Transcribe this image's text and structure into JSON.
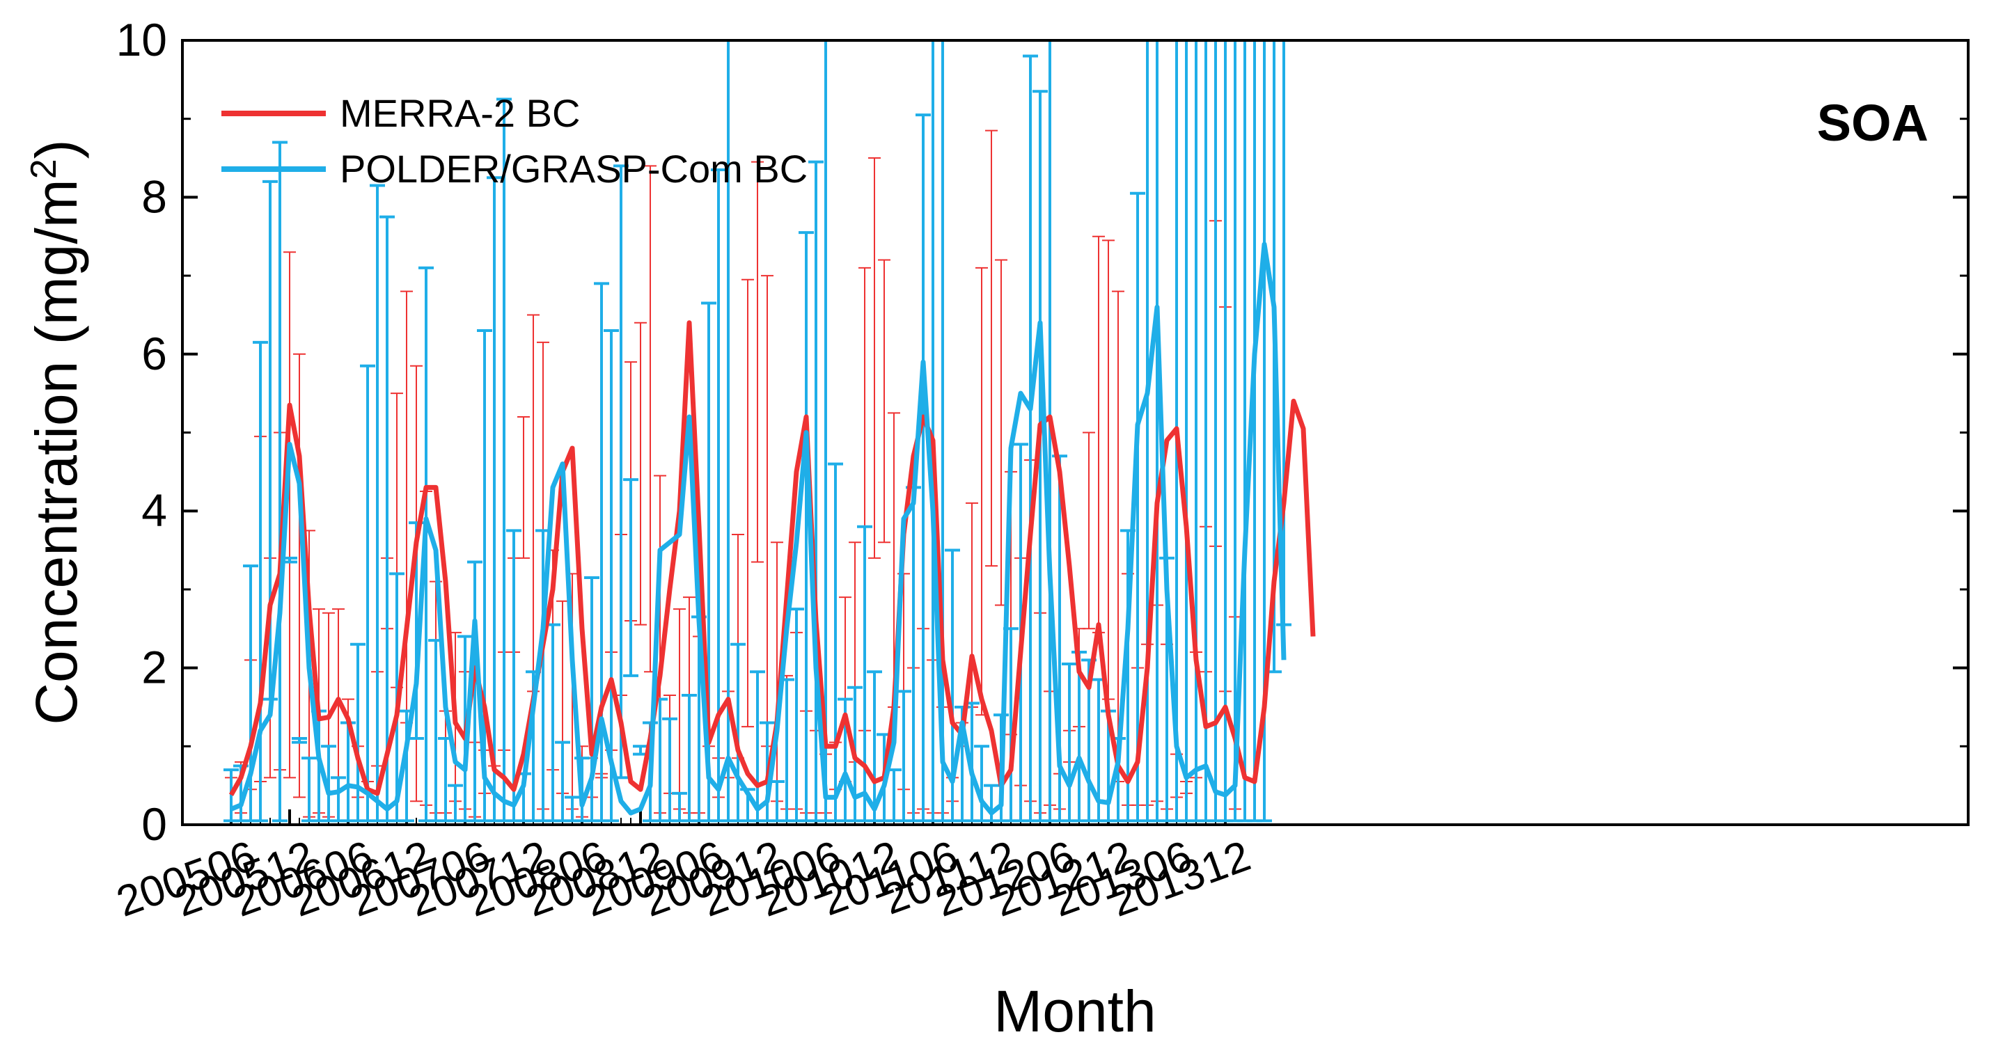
{
  "chart_data": {
    "type": "line",
    "title": "",
    "panel_label": "SOA",
    "xlabel": "Month",
    "ylabel_main": "Concentration (mg/m",
    "ylabel_sup": "2",
    "ylabel_close": ")",
    "ylim": [
      0,
      10
    ],
    "y_ticks": [
      "0",
      "2",
      "4",
      "6",
      "8",
      "10"
    ],
    "x_tick_labels": [
      "200506",
      "200512",
      "200606",
      "200612",
      "200706",
      "200712",
      "200806",
      "200812",
      "200906",
      "200912",
      "201006",
      "201012",
      "201106",
      "201112",
      "201206",
      "201212",
      "201306",
      "201312"
    ],
    "x_start": "200506",
    "x_end": "201312",
    "legend_position": "top-left",
    "colors": {
      "merra": "#ee3232",
      "polder": "#1faee8",
      "axis": "#000000"
    },
    "series": [
      {
        "name": "MERRA-2 BC",
        "key": "merra",
        "values": [
          0.38,
          0.6,
          1.0,
          1.55,
          2.8,
          3.2,
          5.35,
          4.7,
          2.75,
          1.35,
          1.37,
          1.6,
          1.35,
          0.85,
          0.45,
          0.4,
          0.9,
          1.4,
          2.5,
          3.6,
          4.3,
          4.3,
          3.1,
          1.3,
          1.1,
          2.0,
          1.5,
          0.7,
          0.6,
          0.45,
          0.9,
          1.6,
          2.3,
          3.0,
          4.5,
          4.8,
          2.5,
          0.9,
          1.5,
          1.85,
          1.3,
          0.55,
          0.45,
          1.1,
          1.9,
          3.0,
          4.0,
          6.4,
          3.8,
          1.05,
          1.4,
          1.6,
          0.95,
          0.65,
          0.5,
          0.55,
          1.3,
          2.9,
          4.5,
          5.2,
          2.6,
          1.0,
          1.0,
          1.4,
          0.85,
          0.75,
          0.55,
          0.6,
          1.5,
          3.7,
          4.7,
          5.2,
          4.9,
          2.1,
          1.3,
          1.15,
          2.15,
          1.6,
          1.2,
          0.5,
          0.7,
          2.2,
          3.7,
          5.1,
          5.2,
          4.5,
          3.3,
          1.95,
          1.75,
          2.55,
          1.4,
          0.75,
          0.55,
          0.8,
          2.0,
          4.1,
          4.9,
          5.05,
          3.8,
          2.1,
          1.25,
          1.3,
          1.5,
          1.1,
          0.6,
          0.55,
          1.5,
          3.1,
          4.1,
          5.4,
          5.05,
          2.4
        ],
        "err_upper": [
          0.6,
          0.8,
          2.1,
          4.95,
          3.4,
          5.0,
          7.3,
          6.0,
          3.75,
          2.75,
          2.7,
          2.75,
          1.6,
          1.0,
          0.55,
          1.95,
          3.4,
          5.5,
          6.8,
          5.85,
          4.25,
          3.1,
          1.45,
          2.45,
          1.95,
          1.05,
          0.95,
          0.75,
          2.2,
          3.4,
          5.2,
          6.5,
          6.15,
          3.5,
          2.85,
          3.2,
          1.0,
          0.85,
          0.65,
          2.2,
          3.7,
          5.9,
          6.4,
          8.4,
          4.45,
          1.65,
          2.75,
          2.9,
          2.4,
          1.0,
          0.85,
          1.7,
          3.7,
          6.95,
          8.45,
          7.0,
          3.6,
          1.9,
          2.45,
          1.45,
          1.2,
          0.9,
          1.05,
          2.9,
          3.6,
          7.1,
          8.5,
          7.2,
          5.25,
          3.2,
          2.0,
          2.5,
          2.1,
          1.5,
          0.6,
          1.3,
          4.1,
          7.1,
          8.85,
          7.2,
          4.5,
          3.4,
          4.65,
          2.7,
          1.7,
          0.65,
          1.2,
          2.5,
          5.0,
          7.5,
          7.45,
          6.8,
          3.2,
          2.0,
          2.3,
          2.8,
          2.3,
          0.9,
          0.55,
          2.2,
          3.8,
          7.7,
          6.6,
          2.65
        ],
        "err_lower": [
          0.05,
          0.15,
          0.45,
          0.55,
          0.6,
          0.7,
          0.6,
          0.35,
          0.1,
          0.15,
          0.1,
          0.05,
          0.05,
          0.35,
          0.55,
          0.75,
          2.5,
          1.75,
          1.3,
          0.3,
          0.25,
          0.15,
          0.15,
          0.3,
          0.2,
          0.1,
          0.4,
          0.75,
          0.95,
          2.2,
          3.4,
          1.7,
          0.2,
          0.7,
          0.4,
          0.2,
          0.1,
          0.35,
          0.6,
          0.95,
          1.65,
          2.6,
          2.55,
          1.95,
          0.15,
          0.4,
          0.2,
          0.15,
          0.15,
          0.05,
          0.35,
          0.6,
          0.85,
          1.25,
          3.35,
          1.0,
          0.3,
          0.2,
          0.2,
          0.15,
          0.15,
          0.15,
          0.45,
          0.55,
          0.8,
          1.2,
          3.4,
          3.6,
          1.5,
          0.45,
          0.15,
          0.2,
          0.15,
          0.15,
          0.3,
          1.0,
          1.5,
          1.4,
          3.3,
          2.8,
          1.15,
          0.5,
          0.3,
          0.15,
          0.25,
          0.2,
          0.8,
          1.25,
          2.5,
          2.45,
          1.6,
          0.55,
          0.25,
          0.25,
          0.25,
          0.3,
          0.2,
          0.35,
          0.4,
          0.6,
          1.95,
          3.55,
          1.7,
          0.2
        ]
      },
      {
        "name": "POLDER/GRASP-Com BC",
        "key": "polder",
        "values": [
          0.2,
          0.25,
          0.65,
          1.2,
          1.4,
          2.7,
          4.85,
          4.35,
          2.0,
          0.85,
          0.4,
          0.42,
          0.5,
          0.48,
          0.4,
          0.3,
          0.2,
          0.3,
          1.0,
          1.8,
          3.9,
          3.5,
          1.5,
          0.8,
          0.7,
          2.6,
          0.6,
          0.4,
          0.3,
          0.25,
          0.5,
          1.5,
          2.5,
          4.3,
          4.6,
          2.1,
          0.25,
          0.6,
          1.35,
          0.8,
          0.3,
          0.15,
          0.2,
          0.5,
          3.5,
          3.6,
          3.7,
          5.2,
          2.6,
          0.6,
          0.45,
          0.85,
          0.6,
          0.4,
          0.2,
          0.3,
          1.2,
          2.5,
          3.6,
          5.0,
          2.0,
          0.35,
          0.35,
          0.65,
          0.35,
          0.4,
          0.2,
          0.5,
          1.05,
          3.9,
          4.1,
          5.9,
          4.0,
          0.8,
          0.55,
          1.3,
          0.65,
          0.3,
          0.15,
          0.25,
          4.8,
          5.5,
          5.3,
          6.4,
          3.2,
          0.75,
          0.5,
          0.85,
          0.55,
          0.3,
          0.28,
          0.8,
          2.5,
          5.1,
          5.5,
          6.6,
          3.0,
          1.0,
          0.6,
          0.7,
          0.75,
          0.42,
          0.38,
          0.5,
          3.5,
          6.0,
          7.4,
          6.6,
          2.1
        ],
        "err_upper": [
          0.7,
          0.75,
          3.3,
          6.15,
          8.2,
          8.7,
          3.35,
          1.05,
          0.85,
          1.45,
          1.0,
          0.6,
          1.3,
          2.3,
          5.85,
          8.15,
          7.75,
          3.2,
          1.45,
          3.85,
          7.1,
          2.35,
          1.1,
          0.5,
          2.4,
          3.35,
          6.3,
          8.25,
          9.25,
          3.75,
          0.65,
          1.95,
          3.75,
          2.55,
          1.05,
          0.35,
          0.85,
          3.15,
          6.9,
          6.3,
          8.4,
          4.4,
          0.9,
          1.3,
          1.6,
          1.35,
          0.4,
          1.65,
          2.65,
          6.65,
          8.35,
          10.0,
          2.3,
          0.45,
          1.95,
          1.3,
          0.55,
          1.85,
          2.75,
          7.55,
          8.45,
          10.0,
          4.6,
          1.6,
          1.75,
          3.8,
          1.95,
          1.15,
          0.7,
          1.7,
          4.3,
          9.05,
          10.0,
          10.0,
          3.5,
          1.5,
          1.55,
          1.0,
          0.5,
          1.4,
          2.5,
          4.85,
          9.8,
          9.35,
          10.0,
          4.7,
          2.05,
          2.2,
          2.1,
          1.85,
          1.45,
          1.1,
          3.75,
          8.05,
          10.0,
          10.0,
          3.4
        ],
        "err_lower": [
          0.05,
          0.05,
          0.05,
          0.05,
          1.6,
          0.05,
          3.4,
          1.1,
          0.05,
          0.05,
          0.05,
          0.05,
          0.05,
          0.05,
          0.05,
          0.05,
          0.05,
          0.05,
          0.05,
          1.1,
          0.05,
          0.05,
          0.05,
          0.05,
          0.05,
          0.05,
          0.05,
          0.05,
          0.05,
          0.05,
          0.05,
          0.05,
          0.05,
          0.05,
          0.05,
          0.05,
          0.05,
          0.05,
          0.05,
          0.05,
          0.6,
          1.9,
          1.0,
          0.05,
          0.05,
          0.05,
          0.05,
          0.05,
          0.05,
          0.05,
          0.05,
          0.05,
          0.05,
          0.05,
          0.05,
          0.05,
          0.05,
          0.05,
          0.05,
          0.05,
          0.05,
          0.05,
          0.05,
          0.05,
          0.05,
          0.05,
          0.05,
          0.05,
          0.05,
          0.05,
          0.05,
          0.05,
          0.05,
          0.05,
          0.05,
          0.05,
          0.05,
          0.05,
          0.05,
          0.05,
          0.05,
          0.05,
          0.05,
          0.05,
          0.05,
          0.05,
          0.05,
          0.05,
          0.05,
          0.05,
          0.05,
          0.05,
          0.05,
          0.05,
          0.05,
          0.05,
          0.05,
          0.05,
          0.05,
          0.05,
          0.05,
          0.05,
          0.05,
          0.05,
          0.05,
          0.05,
          0.05,
          1.95,
          2.55,
          0.75
        ]
      }
    ]
  }
}
